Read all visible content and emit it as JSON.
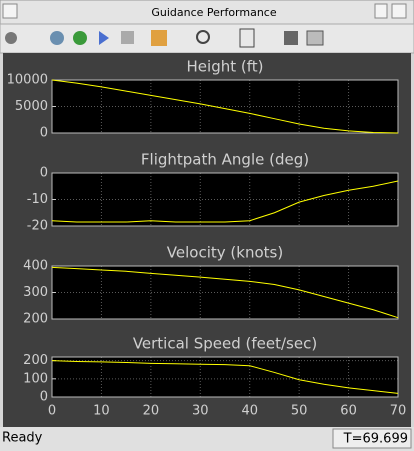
{
  "window": {
    "title": "Guidance Performance"
  },
  "status": {
    "left": "Ready",
    "right": "T=69.699"
  },
  "chart_data": [
    {
      "type": "line",
      "title": "Height (ft)",
      "color": "#ffff00",
      "grid": true,
      "x": [
        0,
        5,
        10,
        15,
        20,
        25,
        30,
        35,
        40,
        45,
        50,
        55,
        60,
        65,
        70
      ],
      "values": [
        10000,
        9400,
        8700,
        7900,
        7100,
        6300,
        5500,
        4600,
        3700,
        2700,
        1700,
        900,
        400,
        100,
        0
      ],
      "xlim": [
        0,
        70
      ],
      "ylim": [
        0,
        10000
      ],
      "yticks": [
        0,
        5000,
        10000
      ]
    },
    {
      "type": "line",
      "title": "Flightpath Angle (deg)",
      "color": "#ffff00",
      "grid": true,
      "x": [
        0,
        5,
        10,
        15,
        20,
        25,
        30,
        35,
        40,
        45,
        50,
        55,
        60,
        65,
        70
      ],
      "values": [
        -18,
        -18.5,
        -18.5,
        -18.5,
        -18,
        -18.5,
        -18.5,
        -18.5,
        -18,
        -15,
        -11,
        -8.5,
        -6.5,
        -5,
        -3
      ],
      "xlim": [
        0,
        70
      ],
      "ylim": [
        -20,
        0
      ],
      "yticks": [
        -20,
        -10,
        0
      ]
    },
    {
      "type": "line",
      "title": "Velocity (knots)",
      "color": "#ffff00",
      "grid": true,
      "x": [
        0,
        5,
        10,
        15,
        20,
        25,
        30,
        35,
        40,
        45,
        50,
        55,
        60,
        65,
        70
      ],
      "values": [
        395,
        390,
        385,
        380,
        372,
        365,
        358,
        350,
        342,
        330,
        310,
        285,
        260,
        235,
        205
      ],
      "xlim": [
        0,
        70
      ],
      "ylim": [
        200,
        400
      ],
      "yticks": [
        200,
        300,
        400
      ]
    },
    {
      "type": "line",
      "title": "Vertical Speed (feet/sec)",
      "color": "#ffff00",
      "grid": true,
      "x": [
        0,
        5,
        10,
        15,
        20,
        25,
        30,
        35,
        40,
        45,
        50,
        55,
        60,
        65,
        70
      ],
      "values": [
        200,
        195,
        193,
        190,
        185,
        183,
        180,
        178,
        172,
        135,
        95,
        70,
        50,
        35,
        20
      ],
      "xlim": [
        0,
        70
      ],
      "ylim": [
        0,
        220
      ],
      "yticks": [
        0,
        100,
        200
      ],
      "xticks": [
        0,
        10,
        20,
        30,
        40,
        50,
        60,
        70
      ]
    }
  ]
}
